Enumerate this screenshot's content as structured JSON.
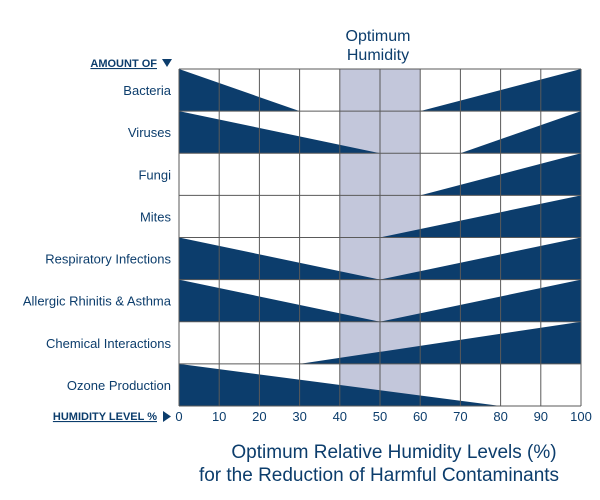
{
  "colors": {
    "navy": "#0c3d6c",
    "band": "#c3c7db",
    "grid": "#5a5a5a"
  },
  "chart_data": {
    "type": "area",
    "title_line1": "Optimum Relative Humidity Levels (%)",
    "title_line2": "for the Reduction of Harmful Contaminants",
    "band_label_line1": "Optimum",
    "band_label_line2": "Humidity",
    "optimum_range": [
      40,
      60
    ],
    "y_axis_title": "AMOUNT OF",
    "x_axis_title": "HUMIDITY LEVEL %",
    "x_ticks": [
      0,
      10,
      20,
      30,
      40,
      50,
      60,
      70,
      80,
      90,
      100
    ],
    "xlim": [
      0,
      100
    ],
    "categories": [
      {
        "name": "Bacteria",
        "wedges": [
          {
            "side": "left",
            "from": 0,
            "to": 30
          },
          {
            "side": "right",
            "from": 60,
            "to": 100
          }
        ]
      },
      {
        "name": "Viruses",
        "wedges": [
          {
            "side": "left",
            "from": 0,
            "to": 50
          },
          {
            "side": "right",
            "from": 70,
            "to": 100
          }
        ]
      },
      {
        "name": "Fungi",
        "wedges": [
          {
            "side": "right",
            "from": 60,
            "to": 100
          }
        ]
      },
      {
        "name": "Mites",
        "wedges": [
          {
            "side": "right",
            "from": 50,
            "to": 100
          }
        ]
      },
      {
        "name": "Respiratory Infections",
        "wedges": [
          {
            "side": "left",
            "from": 0,
            "to": 50
          },
          {
            "side": "right",
            "from": 50,
            "to": 100
          }
        ]
      },
      {
        "name": "Allergic Rhinitis & Asthma",
        "wedges": [
          {
            "side": "left",
            "from": 0,
            "to": 50
          },
          {
            "side": "right",
            "from": 50,
            "to": 100
          }
        ]
      },
      {
        "name": "Chemical Interactions",
        "wedges": [
          {
            "side": "right",
            "from": 30,
            "to": 100
          }
        ]
      },
      {
        "name": "Ozone Production",
        "wedges": [
          {
            "side": "left",
            "from": 0,
            "to": 80
          }
        ]
      }
    ]
  }
}
